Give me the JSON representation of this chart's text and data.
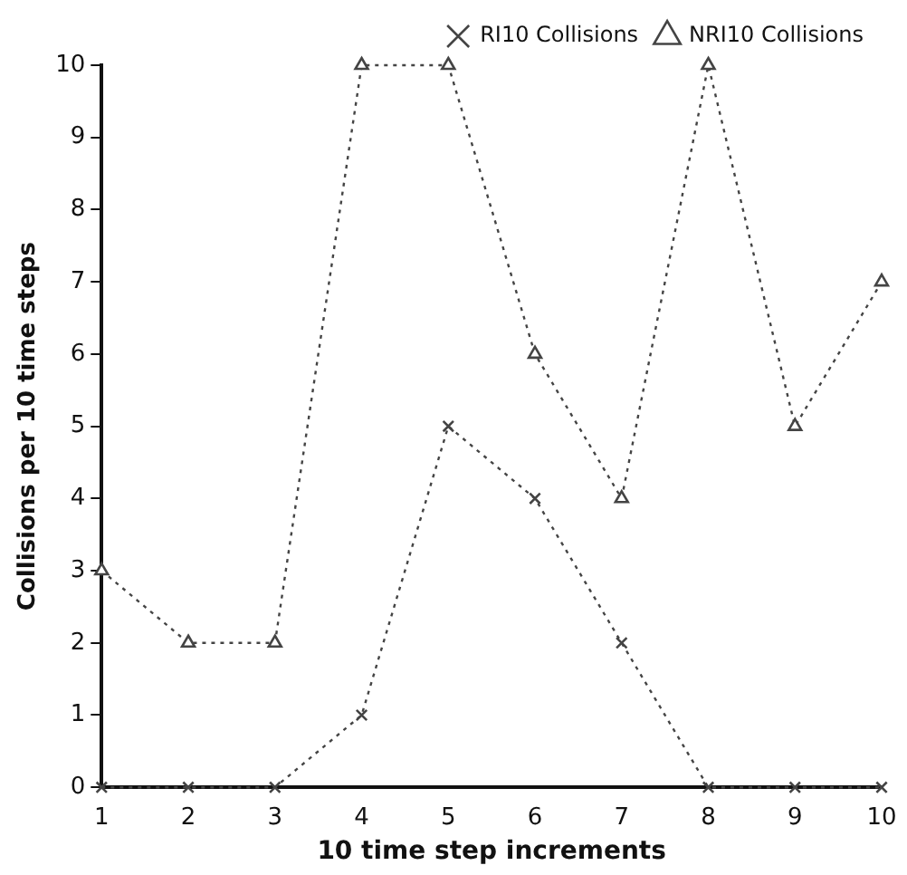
{
  "chart_data": {
    "type": "line",
    "xlabel": "10 time step increments",
    "ylabel": "Collisions per 10 time steps",
    "x": [
      1,
      2,
      3,
      4,
      5,
      6,
      7,
      8,
      9,
      10
    ],
    "series": [
      {
        "name": "RI10 Collisions",
        "color": "#444444",
        "marker": "cross",
        "values": [
          0,
          0,
          0,
          1,
          5,
          4,
          2,
          0,
          0,
          0
        ]
      },
      {
        "name": "NRI10 Collisions",
        "color": "#444444",
        "marker": "triangle",
        "values": [
          3,
          2,
          2,
          10,
          10,
          6,
          4,
          10,
          5,
          7
        ]
      }
    ],
    "xlim": [
      1,
      10
    ],
    "xticks": [
      1,
      2,
      3,
      4,
      5,
      6,
      7,
      8,
      9,
      10
    ],
    "ylim": [
      0,
      10
    ],
    "yticks": [
      0,
      1,
      2,
      3,
      4,
      5,
      6,
      7,
      8,
      9,
      10
    ],
    "grid": false,
    "legend": "top right",
    "line_style": "dotted"
  }
}
